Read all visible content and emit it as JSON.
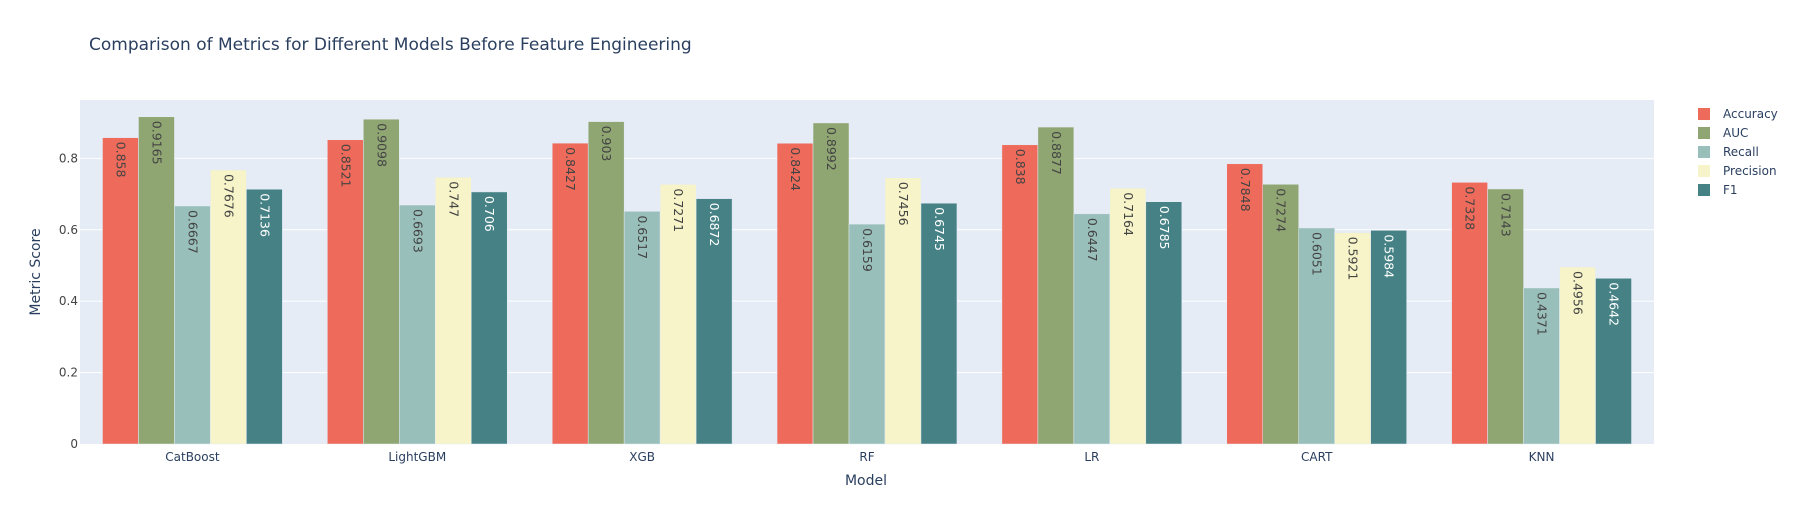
{
  "chart_data": {
    "type": "bar",
    "title": "Comparison of Metrics for Different Models Before Feature Engineering",
    "xlabel": "Model",
    "ylabel": "Metric Score",
    "ylim": [
      0,
      0.9635
    ],
    "yticks": [
      0,
      0.2,
      0.4,
      0.6,
      0.8
    ],
    "ytick_labels": [
      "0",
      "0.2",
      "0.4",
      "0.6",
      "0.8"
    ],
    "grid": true,
    "legend_position": "top-right",
    "categories": [
      "CatBoost",
      "LightGBM",
      "XGB",
      "RF",
      "LR",
      "CART",
      "KNN"
    ],
    "series": [
      {
        "name": "Accuracy",
        "color": "#EE6A5A",
        "label_color": "#444444",
        "values": [
          0.858,
          0.8521,
          0.8427,
          0.8424,
          0.838,
          0.7848,
          0.7328
        ],
        "labels": [
          "0.858",
          "0.8521",
          "0.8427",
          "0.8424",
          "0.838",
          "0.7848",
          "0.7328"
        ]
      },
      {
        "name": "AUC",
        "color": "#8FA672",
        "label_color": "#444444",
        "values": [
          0.9165,
          0.9098,
          0.903,
          0.8992,
          0.8877,
          0.7274,
          0.7143
        ],
        "labels": [
          "0.9165",
          "0.9098",
          "0.903",
          "0.8992",
          "0.8877",
          "0.7274",
          "0.7143"
        ]
      },
      {
        "name": "Recall",
        "color": "#99BFBB",
        "label_color": "#444444",
        "values": [
          0.6667,
          0.6693,
          0.6517,
          0.6159,
          0.6447,
          0.6051,
          0.4371
        ],
        "labels": [
          "0.6667",
          "0.6693",
          "0.6517",
          "0.6159",
          "0.6447",
          "0.6051",
          "0.4371"
        ]
      },
      {
        "name": "Precision",
        "color": "#F6F4C8",
        "label_color": "#444444",
        "values": [
          0.7676,
          0.747,
          0.7271,
          0.7456,
          0.7164,
          0.5921,
          0.4956
        ],
        "labels": [
          "0.7676",
          "0.747",
          "0.7271",
          "0.7456",
          "0.7164",
          "0.5921",
          "0.4956"
        ]
      },
      {
        "name": "F1",
        "color": "#468285",
        "label_color": "#ffffff",
        "values": [
          0.7136,
          0.706,
          0.6872,
          0.6745,
          0.6785,
          0.5984,
          0.4642
        ],
        "labels": [
          "0.7136",
          "0.706",
          "0.6872",
          "0.6745",
          "0.6785",
          "0.5984",
          "0.4642"
        ]
      }
    ]
  },
  "colors": {
    "plot_background": "#E5ECF6",
    "gridline": "#ffffff",
    "text": "#2A3F5F"
  }
}
